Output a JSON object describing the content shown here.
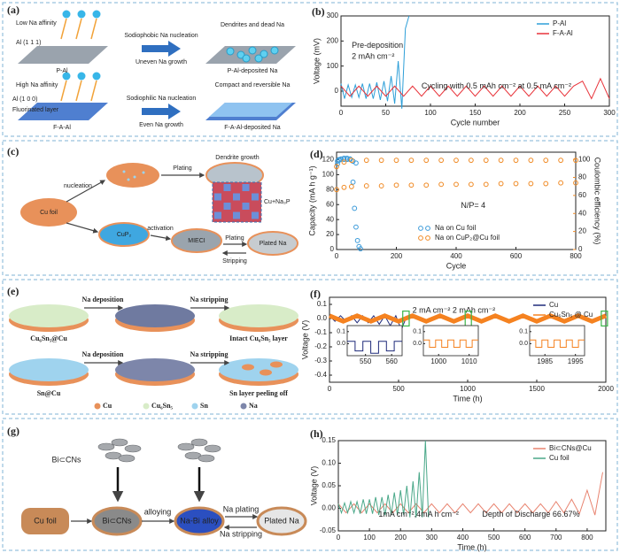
{
  "schematics": {
    "a": {
      "label": "(a)",
      "texts": [
        "Low Na affinity",
        "Al (1 1 1)",
        "P-Al",
        "Sodiophobic Na nucleation",
        "Uneven Na growth",
        "Dendrites and dead Na",
        "P-Al-deposited Na",
        "High Na affinity",
        "Al (1 0 0)",
        "Fluorinated layer",
        "F-A-Al",
        "Sodiophilic Na nucleation",
        "Even Na growth",
        "Compact and reversible Na",
        "F-A-Al-deposited Na"
      ]
    },
    "c": {
      "label": "(c)",
      "texts": [
        "Cu foil",
        "nucleation",
        "Plating",
        "Dendrite growth",
        "CuP₂",
        "activation",
        "MIECI",
        "Cu+Na₃P",
        "Plating",
        "Stripping",
        "Plated Na"
      ]
    },
    "e": {
      "label": "(e)",
      "texts": [
        "Na deposition",
        "Na stripping",
        "Cu₆Sn₅@Cu",
        "Intact Cu₆Sn₅ layer",
        "Na deposition",
        "Na stripping",
        "Sn@Cu",
        "Sn layer peeling off"
      ],
      "legend": [
        "Cu",
        "Cu₆Sn₅",
        "Sn",
        "Na"
      ]
    },
    "g": {
      "label": "(g)",
      "texts": [
        "Bi⊂CNs",
        "Cu foil",
        "Bi⊂CNs",
        "alloying",
        "Na-Bi alloy",
        "Na plating",
        "Na stripping",
        "Plated Na"
      ]
    }
  },
  "chart_data": [
    {
      "type": "line",
      "label": "(b)",
      "xlabel": "Cycle number",
      "ylabel": "Voltage (mV)",
      "xlim": [
        0,
        300
      ],
      "xticks": [
        0,
        50,
        100,
        150,
        200,
        250,
        300
      ],
      "ylim": [
        -60,
        300
      ],
      "yticks": [
        0,
        100,
        200,
        300
      ],
      "legend": "upper right",
      "series": [
        {
          "name": "P-Al",
          "color": "#2e9fd8",
          "x": [
            0,
            4,
            8,
            12,
            16,
            20,
            24,
            28,
            32,
            36,
            40,
            44,
            48,
            52,
            56,
            60,
            64,
            68,
            72,
            76
          ],
          "values": [
            30,
            -30,
            25,
            -25,
            25,
            -25,
            30,
            -30,
            30,
            -30,
            35,
            -35,
            40,
            -40,
            60,
            -50,
            120,
            -70,
            250,
            300
          ]
        },
        {
          "name": "F-A-Al",
          "color": "#e8333a",
          "x": [
            0,
            10,
            20,
            30,
            40,
            50,
            60,
            70,
            80,
            90,
            100,
            110,
            120,
            130,
            140,
            150,
            160,
            170,
            180,
            190,
            200,
            210,
            220,
            230,
            240,
            250,
            260,
            270,
            280,
            290,
            300
          ],
          "values": [
            20,
            -20,
            20,
            -20,
            20,
            -20,
            20,
            -20,
            20,
            -20,
            20,
            -20,
            20,
            -20,
            20,
            -20,
            20,
            -20,
            20,
            -20,
            20,
            -20,
            20,
            -20,
            20,
            -20,
            20,
            40,
            -30,
            50,
            -30
          ]
        }
      ],
      "annotations": [
        "Pre-deposition",
        "2 mAh cm⁻²",
        "Cycling with 0.5 mAh cm⁻² at 0.5 mA cm⁻²"
      ]
    },
    {
      "type": "scatter",
      "label": "(d)",
      "xlabel": "Cycle",
      "ylabel": "Capacity (mA h g⁻¹)",
      "y2label": "Coulombic efficiency (%)",
      "y2_color": "#f08a24",
      "xlim": [
        0,
        800
      ],
      "xticks": [
        0,
        200,
        400,
        600,
        800
      ],
      "ylim": [
        0,
        130
      ],
      "yticks": [
        0,
        20,
        40,
        60,
        80,
        100,
        120
      ],
      "y2lim": [
        0,
        108
      ],
      "y2ticks": [
        0,
        20,
        40,
        60,
        80,
        100
      ],
      "legend": "lower center",
      "series": [
        {
          "name": "Na on Cu foil",
          "color": "#3a9ad9",
          "x": [
            3,
            8,
            15,
            25,
            35,
            45,
            55,
            60,
            65,
            70,
            75,
            80
          ],
          "values": [
            118,
            120,
            121,
            122,
            122,
            121,
            90,
            55,
            30,
            12,
            4,
            1
          ]
        },
        {
          "name": "Na on CuP₂@Cu foil",
          "color": "#f08a24",
          "x": [
            0,
            25,
            50,
            100,
            150,
            200,
            250,
            300,
            350,
            400,
            450,
            500,
            550,
            600,
            650,
            700,
            750,
            800
          ],
          "values": [
            80,
            83,
            84,
            85,
            85,
            86,
            86,
            86,
            87,
            87,
            87,
            87,
            88,
            88,
            88,
            88,
            89,
            89
          ]
        },
        {
          "color": "#3a9ad9",
          "axis": "y2",
          "x": [
            3,
            8,
            15,
            25,
            35,
            45,
            55,
            65
          ],
          "values": [
            95,
            99,
            100,
            100,
            100,
            100,
            98,
            96
          ]
        },
        {
          "color": "#f08a24",
          "axis": "y2",
          "x": [
            0,
            25,
            50,
            100,
            150,
            200,
            250,
            300,
            350,
            400,
            450,
            500,
            550,
            600,
            650,
            700,
            750,
            800
          ],
          "values": [
            92,
            97,
            99,
            99,
            99,
            99,
            99,
            99,
            99,
            99,
            99,
            99,
            99,
            99,
            99,
            99,
            99,
            99
          ]
        }
      ],
      "annotations": [
        "N/P= 4"
      ]
    },
    {
      "type": "line",
      "label": "(f)",
      "xlabel": "Time (h)",
      "ylabel": "Voltage (V)",
      "xlim": [
        0,
        2000
      ],
      "xticks": [
        0,
        500,
        1000,
        1500,
        2000
      ],
      "ylim": [
        -0.45,
        0.15
      ],
      "yticks": [
        0.1,
        {
          "value": 0,
          "label": "0.0"
        },
        -0.1,
        -0.2,
        -0.3,
        -0.4
      ],
      "legend": "upper right",
      "series": [
        {
          "name": "Cu",
          "color": "#1f2a7a",
          "x": [
            0,
            40,
            80,
            120,
            160,
            200,
            240,
            280,
            320,
            360,
            400,
            440,
            480,
            520,
            560
          ],
          "values": [
            0.02,
            -0.02,
            0.02,
            -0.02,
            0.02,
            -0.03,
            0.02,
            -0.03,
            0.02,
            -0.04,
            0.02,
            -0.05,
            0.02,
            -0.08,
            0.02
          ]
        },
        {
          "name": "Cu₆Sn₅ @ Cu",
          "color": "#f58220",
          "x": [
            0,
            100,
            200,
            300,
            400,
            500,
            600,
            700,
            800,
            900,
            1000,
            1100,
            1200,
            1300,
            1400,
            1500,
            1600,
            1700,
            1800,
            1900,
            2000
          ],
          "values": [
            0.02,
            -0.02,
            0.02,
            -0.02,
            0.02,
            -0.02,
            0.02,
            -0.02,
            0.02,
            -0.02,
            0.02,
            -0.02,
            0.02,
            -0.02,
            0.02,
            -0.02,
            0.02,
            -0.02,
            0.02,
            -0.02,
            0.02
          ]
        }
      ],
      "annotations": [
        "2 mA cm⁻² 2 mAh cm⁻²"
      ],
      "insets": [
        {
          "color": "#1f2a7a",
          "xlim": [
            543,
            564
          ],
          "xticks": [
            550,
            560
          ],
          "ylim": [
            -0.1,
            0.15
          ],
          "yticks": [
            {
              "value": 0,
              "label": "0.0"
            },
            0.1
          ],
          "x": [
            543,
            546,
            546,
            549,
            549,
            552,
            552,
            555,
            555,
            558,
            558,
            561,
            561,
            564
          ],
          "values": [
            0.02,
            0.02,
            -0.06,
            -0.06,
            0.02,
            0.02,
            -0.08,
            -0.08,
            0.02,
            0.02,
            -0.06,
            -0.06,
            0.02,
            0.02
          ]
        },
        {
          "color": "#f58220",
          "xlim": [
            995,
            1013
          ],
          "xticks": [
            1000,
            1010
          ],
          "ylim": [
            -0.1,
            0.15
          ],
          "yticks": [
            {
              "value": 0,
              "label": "0.0"
            },
            0.1
          ],
          "x": [
            995,
            997,
            997,
            999,
            999,
            1001,
            1001,
            1003,
            1003,
            1005,
            1005,
            1007,
            1007,
            1009,
            1009,
            1011,
            1011,
            1013
          ],
          "values": [
            0.03,
            0.03,
            -0.03,
            -0.03,
            0.03,
            0.03,
            -0.03,
            -0.03,
            0.03,
            0.03,
            -0.03,
            -0.03,
            0.03,
            0.03,
            -0.03,
            -0.03,
            0.03,
            0.03
          ]
        },
        {
          "color": "#f58220",
          "xlim": [
            1980,
            1998
          ],
          "xticks": [
            1985,
            1995
          ],
          "ylim": [
            -0.1,
            0.15
          ],
          "yticks": [
            {
              "value": 0,
              "label": "0.0"
            },
            0.1
          ],
          "x": [
            1980,
            1982,
            1982,
            1984,
            1984,
            1986,
            1986,
            1988,
            1988,
            1990,
            1990,
            1992,
            1992,
            1994,
            1994,
            1996,
            1996,
            1998
          ],
          "values": [
            0.03,
            0.03,
            -0.03,
            -0.03,
            0.03,
            0.03,
            -0.03,
            -0.03,
            0.03,
            0.03,
            -0.03,
            -0.03,
            0.03,
            0.03,
            -0.03,
            -0.03,
            0.03,
            0.03
          ]
        }
      ]
    },
    {
      "type": "line",
      "label": "(h)",
      "xlabel": "Time (h)",
      "ylabel": "Voltage (V)",
      "xlim": [
        0,
        860
      ],
      "xticks": [
        0,
        100,
        200,
        300,
        400,
        500,
        600,
        700,
        800
      ],
      "ylim": [
        -0.05,
        0.15
      ],
      "yticks": [
        -0.05,
        {
          "value": 0,
          "label": "0.00"
        },
        0.05,
        {
          "value": 0.1,
          "label": "0.10"
        },
        0.15
      ],
      "legend": "upper right",
      "series": [
        {
          "name": "Bi⊂CNs@Cu",
          "color": "#e8836f",
          "x": [
            0,
            25,
            50,
            75,
            100,
            125,
            150,
            175,
            200,
            225,
            250,
            275,
            300,
            325,
            350,
            375,
            400,
            425,
            450,
            475,
            500,
            525,
            550,
            575,
            600,
            625,
            650,
            675,
            700,
            725,
            750,
            775,
            800,
            825,
            850
          ],
          "values": [
            0.01,
            -0.01,
            0.01,
            -0.01,
            0.01,
            -0.01,
            0.01,
            -0.01,
            0.01,
            -0.01,
            0.01,
            -0.01,
            0.01,
            -0.01,
            0.01,
            -0.01,
            0.01,
            -0.01,
            0.01,
            -0.01,
            0.01,
            -0.01,
            0.01,
            -0.01,
            0.01,
            -0.01,
            0.01,
            -0.01,
            0.015,
            -0.01,
            0.02,
            -0.012,
            0.04,
            -0.015,
            0.08
          ]
        },
        {
          "name": "Cu foil",
          "color": "#4aa889",
          "x": [
            0,
            10,
            20,
            30,
            40,
            50,
            60,
            70,
            80,
            90,
            100,
            110,
            120,
            130,
            140,
            150,
            160,
            170,
            180,
            190,
            200,
            210,
            220,
            230,
            240,
            250,
            260,
            270,
            280,
            290
          ],
          "values": [
            0.01,
            -0.01,
            0.012,
            -0.01,
            0.015,
            -0.01,
            0.015,
            -0.012,
            0.02,
            -0.012,
            0.02,
            -0.012,
            0.025,
            -0.015,
            0.025,
            -0.015,
            0.03,
            -0.015,
            0.035,
            -0.015,
            0.04,
            -0.015,
            0.05,
            -0.02,
            0.06,
            -0.02,
            0.08,
            -0.02,
            0.15,
            -0.02
          ]
        }
      ],
      "annotations": [
        "1mA cm⁻²,4mA h cm⁻²",
        "Depth of Discharge 66.67%"
      ]
    }
  ]
}
